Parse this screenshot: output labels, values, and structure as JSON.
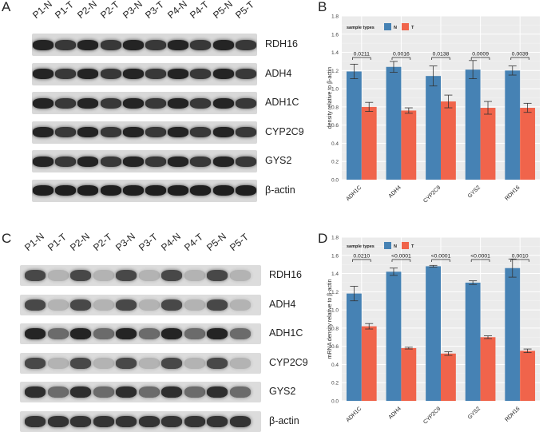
{
  "panels": {
    "A": {
      "letter": "A",
      "lanes": [
        "P1-N",
        "P1-T",
        "P2-N",
        "P2-T",
        "P3-N",
        "P3-T",
        "P4-N",
        "P4-T",
        "P5-N",
        "P5-T"
      ],
      "genes": [
        "RDH16",
        "ADH4",
        "ADH1C",
        "CYP2C9",
        "GYS2",
        "β-actin"
      ]
    },
    "C": {
      "letter": "C",
      "lanes": [
        "P1-N",
        "P1-T",
        "P2-N",
        "P2-T",
        "P3-N",
        "P3-T",
        "P4-N",
        "P4-T",
        "P5-N",
        "P5-T"
      ],
      "genes": [
        "RDH16",
        "ADH4",
        "ADH1C",
        "CYP2C9",
        "GYS2",
        "β-actin"
      ]
    }
  },
  "colors": {
    "normal": "#4682b4",
    "tumor": "#f0644b",
    "panel_bg": "#ebebeb",
    "grid": "#ffffff"
  },
  "chart_data": [
    {
      "letter": "B",
      "type": "bar",
      "legend_title": "sample types",
      "series": [
        {
          "name": "N",
          "values": [
            1.19,
            1.24,
            1.14,
            1.21,
            1.2
          ],
          "errors": [
            0.08,
            0.06,
            0.11,
            0.1,
            0.05
          ]
        },
        {
          "name": "T",
          "values": [
            0.8,
            0.76,
            0.86,
            0.79,
            0.79
          ],
          "errors": [
            0.05,
            0.03,
            0.07,
            0.07,
            0.05
          ]
        }
      ],
      "categories": [
        "ADH1C",
        "ADH4",
        "CYP2C9",
        "GYS2",
        "RDH16"
      ],
      "pvalues": [
        "0.0211",
        "0.0016",
        "0.0138",
        "0.0009",
        "0.0039"
      ],
      "ylabel": "density relative to β-actin",
      "ylim": [
        0,
        1.8
      ],
      "yticks": [
        "0.0",
        "0.2",
        "0.4",
        "0.6",
        "0.8",
        "1.0",
        "1.2",
        "1.4",
        "1.6",
        "1.8"
      ],
      "grid": true,
      "legend": "top-left"
    },
    {
      "letter": "D",
      "type": "bar",
      "legend_title": "sample types",
      "series": [
        {
          "name": "N",
          "values": [
            1.18,
            1.42,
            1.48,
            1.3,
            1.46
          ],
          "errors": [
            0.08,
            0.04,
            0.01,
            0.02,
            0.1
          ]
        },
        {
          "name": "T",
          "values": [
            0.82,
            0.58,
            0.52,
            0.7,
            0.55
          ],
          "errors": [
            0.03,
            0.01,
            0.02,
            0.015,
            0.02
          ]
        }
      ],
      "categories": [
        "ADH1C",
        "ADH4",
        "CYP2C9",
        "GYS2",
        "RDH16"
      ],
      "pvalues": [
        "0.0210",
        "<0.0001",
        "<0.0001",
        "<0.0001",
        "0.0010"
      ],
      "ylabel": "mRNA density relative to β-actin",
      "ylim": [
        0,
        1.8
      ],
      "yticks": [
        "0.0",
        "0.2",
        "0.4",
        "0.6",
        "0.8",
        "1.0",
        "1.2",
        "1.4",
        "1.6",
        "1.8"
      ],
      "grid": true,
      "legend": "top-left"
    }
  ]
}
